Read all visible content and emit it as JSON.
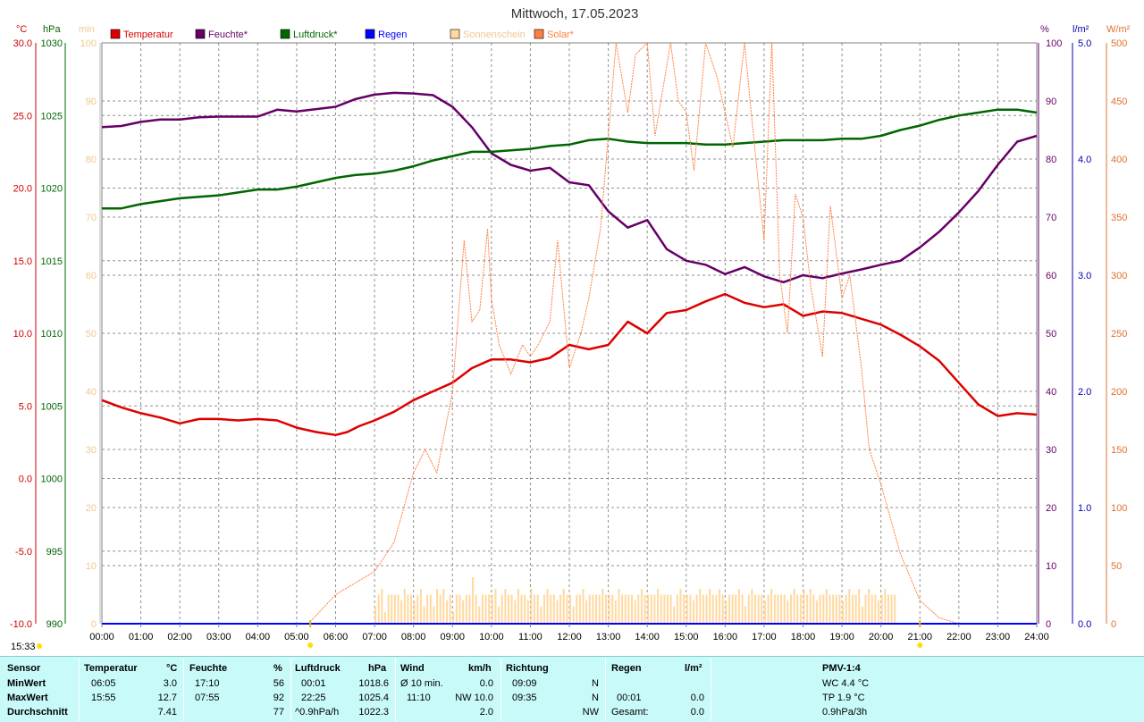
{
  "chart_data": {
    "type": "line",
    "title": "Mittwoch, 17.05.2023",
    "current_time": "15:33",
    "x_ticks": [
      "00:00",
      "01:00",
      "02:00",
      "03:00",
      "04:00",
      "05:00",
      "06:00",
      "07:00",
      "08:00",
      "09:00",
      "10:00",
      "11:00",
      "12:00",
      "13:00",
      "14:00",
      "15:00",
      "16:00",
      "17:00",
      "18:00",
      "19:00",
      "20:00",
      "21:00",
      "22:00",
      "23:00",
      "24:00"
    ],
    "axes": {
      "temp": {
        "unit": "°C",
        "color": "#cc0000",
        "range": [
          -10,
          30
        ],
        "ticks": [
          "30.0",
          "25.0",
          "20.0",
          "15.0",
          "10.0",
          "5.0",
          "0.0",
          "-5.0",
          "-10.0"
        ]
      },
      "pressure": {
        "unit": "hPa",
        "color": "#006600",
        "range": [
          990,
          1030
        ],
        "ticks": [
          "1030",
          "1025",
          "1020",
          "1015",
          "1010",
          "1005",
          "1000",
          "995",
          "990"
        ]
      },
      "sunshine": {
        "unit": "min",
        "color": "#f5c890",
        "range": [
          0,
          100
        ],
        "ticks": [
          "100",
          "90",
          "80",
          "70",
          "60",
          "50",
          "40",
          "30",
          "20",
          "10",
          "0"
        ]
      },
      "humidity": {
        "unit": "%",
        "color": "#660066",
        "range": [
          0,
          100
        ],
        "ticks": [
          "100",
          "90",
          "80",
          "70",
          "60",
          "50",
          "40",
          "30",
          "20",
          "10",
          "0"
        ]
      },
      "rain": {
        "unit": "l/m²",
        "color": "#0000aa",
        "range": [
          0,
          5
        ],
        "ticks": [
          "5.0",
          "4.0",
          "3.0",
          "2.0",
          "1.0",
          "0.0"
        ]
      },
      "solar": {
        "unit": "W/m²",
        "color": "#e07030",
        "range": [
          0,
          500
        ],
        "ticks": [
          "500",
          "450",
          "400",
          "350",
          "300",
          "250",
          "200",
          "150",
          "100",
          "50",
          "0"
        ]
      }
    },
    "legend": [
      {
        "label": "Temperatur",
        "color": "#dd0000"
      },
      {
        "label": "Feuchte*",
        "color": "#660066"
      },
      {
        "label": "Luftdruck*",
        "color": "#006600"
      },
      {
        "label": "Regen",
        "color": "#0000ff"
      },
      {
        "label": "Sonnenschein",
        "color": "#ffd9a0"
      },
      {
        "label": "Solar*",
        "color": "#ff8040"
      }
    ],
    "series": [
      {
        "name": "Temperatur",
        "axis": "temp",
        "color": "#dd0000",
        "x": [
          0,
          0.5,
          1,
          1.5,
          2,
          2.5,
          3,
          3.5,
          4,
          4.5,
          5,
          5.5,
          6,
          6.3,
          6.6,
          7,
          7.5,
          8,
          8.5,
          9,
          9.5,
          10,
          10.5,
          11,
          11.5,
          12,
          12.5,
          13,
          13.5,
          14,
          14.5,
          15,
          15.5,
          16,
          16.5,
          17,
          17.5,
          18,
          18.5,
          19,
          19.5,
          20,
          20.5,
          21,
          21.5,
          22,
          22.5,
          23,
          23.5,
          24
        ],
        "y": [
          5.4,
          4.9,
          4.5,
          4.2,
          3.8,
          4.1,
          4.1,
          4.0,
          4.1,
          4.0,
          3.5,
          3.2,
          3.0,
          3.2,
          3.6,
          4.0,
          4.6,
          5.4,
          6.0,
          6.6,
          7.6,
          8.2,
          8.2,
          8.0,
          8.3,
          9.2,
          8.9,
          9.2,
          10.8,
          10.0,
          11.4,
          11.6,
          12.2,
          12.7,
          12.1,
          11.8,
          12.0,
          11.2,
          11.5,
          11.4,
          11.0,
          10.6,
          9.9,
          9.1,
          8.1,
          6.6,
          5.1,
          4.3,
          4.5,
          4.4
        ]
      },
      {
        "name": "Feuchte*",
        "axis": "humidity",
        "color": "#660066",
        "x": [
          0,
          0.5,
          1,
          1.5,
          2,
          2.5,
          3,
          3.5,
          4,
          4.5,
          5,
          5.5,
          6,
          6.5,
          7,
          7.5,
          8,
          8.5,
          9,
          9.5,
          10,
          10.5,
          11,
          11.5,
          12,
          12.5,
          13,
          13.5,
          14,
          14.5,
          15,
          15.5,
          16,
          16.5,
          17,
          17.5,
          18,
          18.5,
          19,
          19.5,
          20,
          20.5,
          21,
          21.5,
          22,
          22.5,
          23,
          23.5,
          24
        ],
        "y": [
          85.5,
          85.7,
          86.4,
          86.8,
          86.8,
          87.2,
          87.3,
          87.3,
          87.3,
          88.5,
          88.2,
          88.6,
          89.0,
          90.3,
          91.1,
          91.4,
          91.3,
          91.0,
          89.0,
          85.5,
          81.0,
          79.0,
          78.0,
          78.5,
          76.0,
          75.5,
          71.0,
          68.2,
          69.5,
          64.5,
          62.5,
          61.8,
          60.2,
          61.4,
          59.8,
          58.8,
          60.0,
          59.5,
          60.3,
          61.0,
          61.8,
          62.5,
          64.8,
          67.5,
          70.8,
          74.5,
          79.0,
          83.0,
          84.0
        ]
      },
      {
        "name": "Luftdruck*",
        "axis": "pressure",
        "color": "#006600",
        "x": [
          0,
          0.5,
          1,
          1.5,
          2,
          2.5,
          3,
          3.5,
          4,
          4.5,
          5,
          5.5,
          6,
          6.5,
          7,
          7.5,
          8,
          8.5,
          9,
          9.5,
          10,
          10.5,
          11,
          11.5,
          12,
          12.5,
          13,
          13.5,
          14,
          14.5,
          15,
          15.5,
          16,
          16.5,
          17,
          17.5,
          18,
          18.5,
          19,
          19.5,
          20,
          20.5,
          21,
          21.5,
          22,
          22.5,
          23,
          23.5,
          24
        ],
        "y": [
          1018.6,
          1018.6,
          1018.9,
          1019.1,
          1019.3,
          1019.4,
          1019.5,
          1019.7,
          1019.9,
          1019.9,
          1020.1,
          1020.4,
          1020.7,
          1020.9,
          1021.0,
          1021.2,
          1021.5,
          1021.9,
          1022.2,
          1022.5,
          1022.5,
          1022.6,
          1022.7,
          1022.9,
          1023.0,
          1023.3,
          1023.4,
          1023.2,
          1023.1,
          1023.1,
          1023.1,
          1023.0,
          1023.0,
          1023.1,
          1023.2,
          1023.3,
          1023.3,
          1023.3,
          1023.4,
          1023.4,
          1023.6,
          1024.0,
          1024.3,
          1024.7,
          1025.0,
          1025.2,
          1025.4,
          1025.4,
          1025.2
        ]
      },
      {
        "name": "Solar*",
        "axis": "solar",
        "color": "#ff8040",
        "x": [
          5.3,
          6,
          6.5,
          7,
          7.5,
          8,
          8.3,
          8.6,
          9,
          9.3,
          9.5,
          9.7,
          9.9,
          10,
          10.2,
          10.5,
          10.8,
          11,
          11.2,
          11.5,
          11.7,
          12,
          12.3,
          12.5,
          12.8,
          13,
          13.2,
          13.5,
          13.7,
          14,
          14.2,
          14.4,
          14.6,
          14.8,
          15,
          15.2,
          15.5,
          15.8,
          16,
          16.2,
          16.5,
          16.7,
          17,
          17.2,
          17.4,
          17.6,
          17.8,
          18,
          18.2,
          18.5,
          18.7,
          19,
          19.2,
          19.5,
          19.7,
          20,
          20.5,
          21,
          21.5,
          22
        ],
        "y": [
          0,
          25,
          35,
          45,
          70,
          130,
          150,
          130,
          200,
          330,
          260,
          270,
          340,
          280,
          240,
          215,
          240,
          230,
          240,
          260,
          330,
          220,
          250,
          280,
          340,
          420,
          500,
          440,
          490,
          500,
          420,
          460,
          500,
          450,
          440,
          390,
          500,
          470,
          440,
          410,
          500,
          430,
          330,
          500,
          300,
          250,
          370,
          350,
          290,
          230,
          360,
          280,
          300,
          220,
          150,
          120,
          60,
          20,
          5,
          0
        ]
      },
      {
        "name": "Sonnenschein",
        "axis": "sunshine",
        "color": "#ffd9a0",
        "bars_from": 7.0,
        "bars_to": 20.4,
        "step_minutes": 5,
        "values": [
          3,
          5,
          6,
          2,
          5,
          5,
          5,
          5,
          4,
          6,
          5,
          5,
          4,
          5,
          6,
          3,
          5,
          5,
          3,
          6,
          5,
          6,
          4,
          5,
          2,
          5,
          5,
          4,
          5,
          5,
          8,
          5,
          3,
          5,
          5,
          5,
          5,
          6,
          3,
          5,
          6,
          5,
          5,
          4,
          6,
          5,
          5,
          4,
          6,
          5,
          5,
          3,
          5,
          6,
          5,
          5,
          4,
          5,
          6,
          5,
          5,
          3,
          5,
          5,
          6,
          4,
          5,
          5,
          5,
          5,
          6,
          5,
          5,
          5,
          4,
          6,
          5,
          5,
          5,
          5,
          4,
          5,
          6,
          5,
          5,
          5,
          5,
          6,
          5,
          5,
          5,
          5,
          3,
          5,
          6,
          5,
          5,
          5,
          4,
          5,
          6,
          5,
          5,
          6,
          5,
          5,
          6,
          5,
          4,
          5,
          5,
          5,
          6,
          5,
          3,
          5,
          6,
          5,
          5,
          5,
          4,
          5,
          6,
          5,
          5,
          5,
          5,
          4,
          5,
          6,
          5,
          5,
          6,
          5,
          6,
          5,
          4,
          5,
          5,
          6,
          5,
          5,
          5,
          5,
          4,
          5,
          6,
          5,
          5,
          6,
          3,
          5,
          6,
          5,
          5,
          4,
          5,
          6,
          5,
          5,
          5,
          8,
          3
        ]
      },
      {
        "name": "Regen",
        "axis": "rain",
        "color": "#0000ff",
        "x": [
          0,
          24
        ],
        "y": [
          0,
          0
        ]
      }
    ],
    "grid": true
  },
  "footer": {
    "sensor": {
      "header": "Sensor",
      "rows": [
        "MinWert",
        "MaxWert",
        "Durchschnitt"
      ]
    },
    "temperatur": {
      "header": "Temperatur",
      "unit": "°C",
      "times": [
        "06:05",
        "15:55",
        ""
      ],
      "values": [
        "3.0",
        "12.7",
        "7.41"
      ]
    },
    "feuchte": {
      "header": "Feuchte",
      "unit": "%",
      "times": [
        "17:10",
        "07:55",
        ""
      ],
      "values": [
        "56",
        "92",
        "77"
      ]
    },
    "luftdruck": {
      "header": "Luftdruck",
      "unit": "hPa",
      "times": [
        "00:01",
        "22:25",
        "^0.9hPa/h"
      ],
      "values": [
        "1018.6",
        "1025.4",
        "1022.3"
      ]
    },
    "wind": {
      "header": "Wind",
      "unit": "km/h",
      "times": [
        "Ø 10 min.",
        "11:10",
        ""
      ],
      "values": [
        "0.0",
        "NW 10.0",
        "2.0"
      ]
    },
    "richtung": {
      "header": "Richtung",
      "times": [
        "09:09",
        "09:35",
        ""
      ],
      "values": [
        "N",
        "N",
        "NW"
      ]
    },
    "regen": {
      "header": "Regen",
      "unit": "l/m²",
      "times": [
        "",
        "00:01",
        "Gesamt:"
      ],
      "values": [
        "",
        "0.0",
        "0.0"
      ]
    },
    "pmv": {
      "header": "PMV-1:4",
      "values": [
        "WC 4.4 °C",
        "TP 1.9 °C",
        "0.9hPa/3h"
      ]
    }
  }
}
